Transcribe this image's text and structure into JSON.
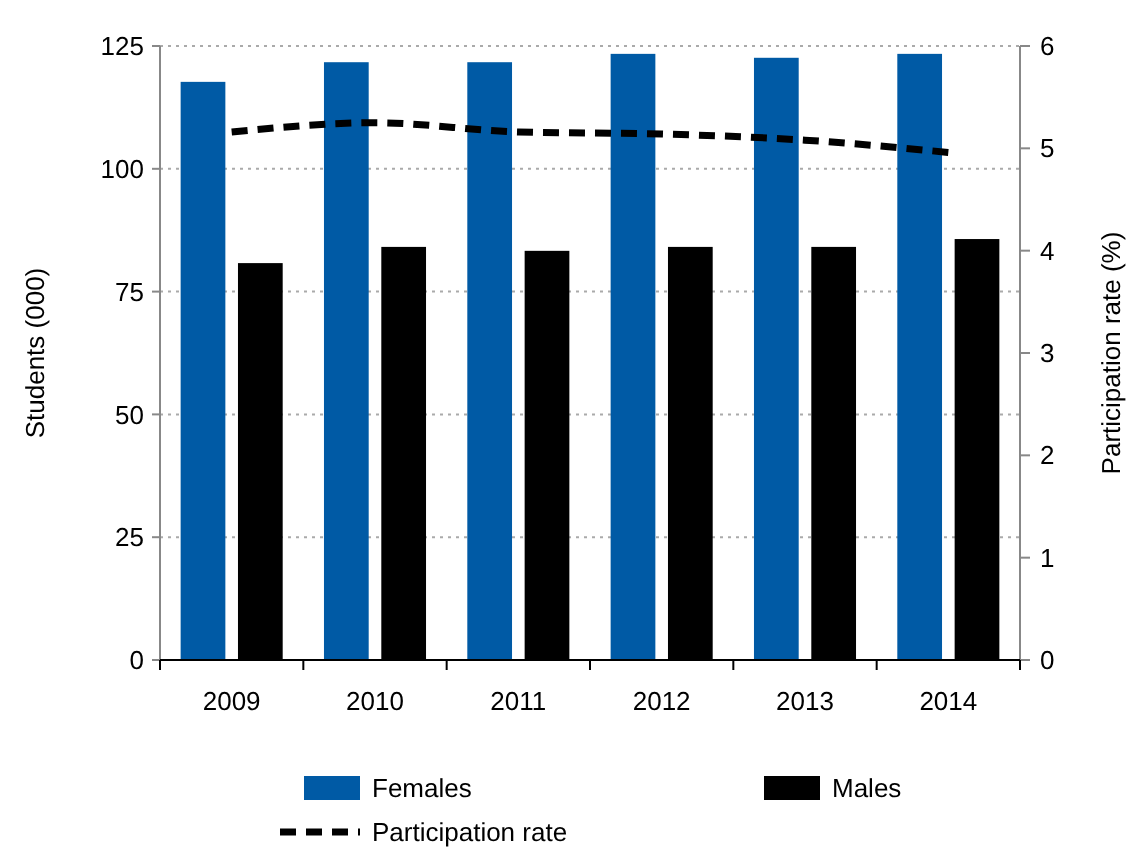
{
  "chart_data": {
    "type": "bar",
    "categories": [
      "2009",
      "2010",
      "2011",
      "2012",
      "2013",
      "2014"
    ],
    "series": [
      {
        "name": "Females",
        "color": "#005aa5",
        "values": [
          117.7,
          121.7,
          121.7,
          123.4,
          122.6,
          123.4
        ]
      },
      {
        "name": "Males",
        "color": "#000000",
        "values": [
          80.8,
          84.1,
          83.3,
          84.1,
          84.1,
          85.7
        ]
      },
      {
        "name": "Participation rate",
        "type": "line",
        "axis": "y2",
        "color": "#000000",
        "line_style": "dashed",
        "values": [
          5.16,
          5.25,
          5.16,
          5.14,
          5.08,
          4.96
        ]
      }
    ],
    "ylabel": "Students  (000)",
    "y2label": "Participation rate (%)",
    "ylim": [
      0,
      125
    ],
    "yticks": [
      0,
      25,
      50,
      75,
      100,
      125
    ],
    "y2lim": [
      0,
      6
    ],
    "y2ticks": [
      0,
      1,
      2,
      3,
      4,
      5,
      6
    ],
    "grid": "y",
    "legend": "bottom"
  }
}
